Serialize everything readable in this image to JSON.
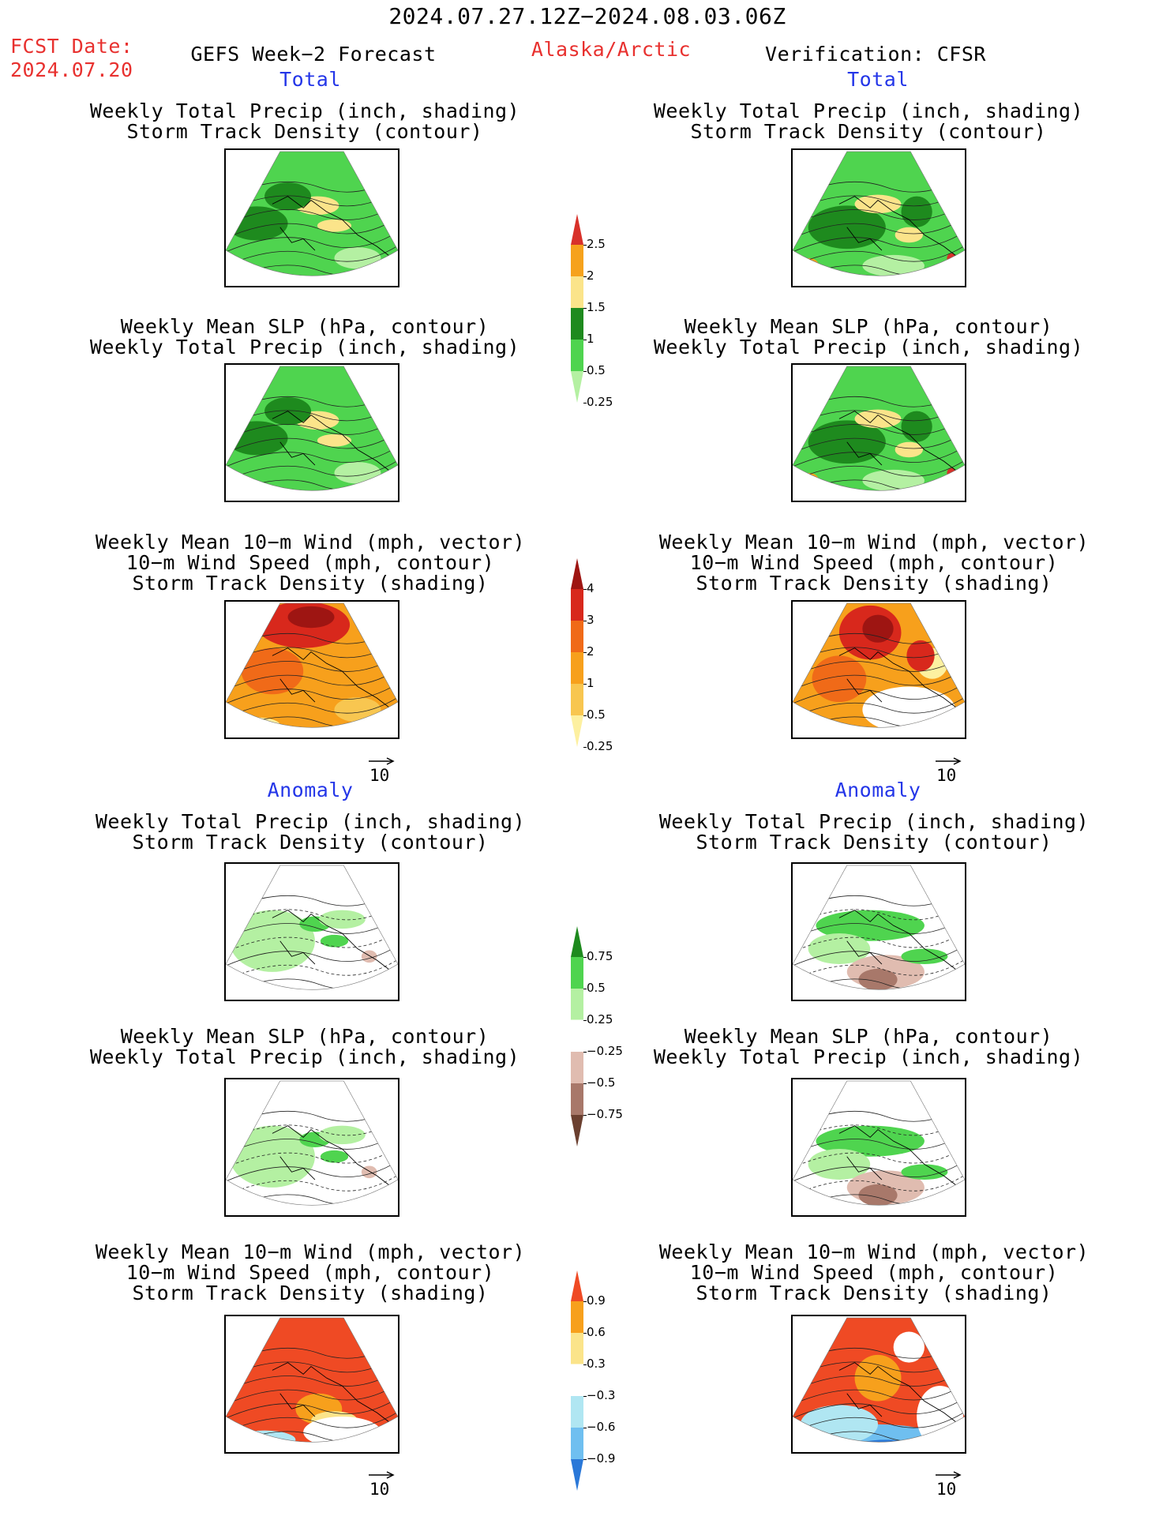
{
  "header": {
    "date_range": "2024.07.27.12Z−2024.08.03.06Z",
    "fcst_label": "FCST Date:",
    "fcst_date": "2024.07.20",
    "forecast_title": "GEFS Week−2 Forecast",
    "region": "Alaska/Arctic",
    "verification": "Verification: CFSR"
  },
  "sections": {
    "total": "Total",
    "anomaly": "Anomaly"
  },
  "panel_titles": {
    "precip_storm": [
      "Weekly Total Precip (inch, shading)",
      "Storm Track Density (contour)"
    ],
    "slp_precip": [
      "Weekly Mean SLP (hPa, contour)",
      "Weekly Total Precip (inch, shading)"
    ],
    "wind_storm": [
      "Weekly Mean 10−m Wind (mph, vector)",
      "10−m Wind Speed (mph, contour)",
      "Storm Track Density (shading)"
    ]
  },
  "vector_reference": "10",
  "colorbars": {
    "precip_total": {
      "colors": [
        "#d8312a",
        "#f6a21c",
        "#fbe48a",
        "#1e8a1e",
        "#4fd44f",
        "#b4f0a2"
      ],
      "labels": [
        "2.5",
        "2",
        "1.5",
        "1",
        "0.5",
        "0.25"
      ]
    },
    "storm_total": {
      "colors": [
        "#9e1512",
        "#d8281c",
        "#f06a18",
        "#f7a01c",
        "#f8c650",
        "#fdf0a0"
      ],
      "labels": [
        "4",
        "3",
        "2",
        "1",
        "0.5",
        "0.25"
      ]
    },
    "precip_anom": {
      "colors": [
        "#1e8a1e",
        "#4fd44f",
        "#b4f0a2",
        "#ffffff",
        "#e0bcb0",
        "#a8786a",
        "#6b4030"
      ],
      "labels": [
        "0.75",
        "0.5",
        "0.25",
        "−0.25",
        "−0.5",
        "−0.75"
      ]
    },
    "storm_anom": {
      "colors": [
        "#ef4a24",
        "#f7a01c",
        "#fbe48a",
        "#ffffff",
        "#b0e6f2",
        "#6fbff0",
        "#2a78d8"
      ],
      "labels": [
        "0.9",
        "0.6",
        "0.3",
        "−0.3",
        "−0.6",
        "−0.9"
      ]
    }
  }
}
